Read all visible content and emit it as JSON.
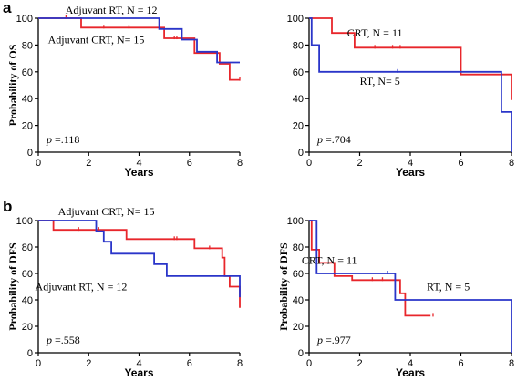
{
  "panel_labels": [
    "a",
    "b"
  ],
  "colors": {
    "red": "#e8262b",
    "blue": "#2a35c9",
    "axis": "#000000"
  },
  "chart_data": [
    {
      "type": "line",
      "panel": "a-left",
      "xlabel": "Years",
      "ylabel": "Probability of OS",
      "xlim": [
        0,
        8
      ],
      "ylim": [
        0,
        100
      ],
      "xticks": [
        0,
        2,
        4,
        6,
        8
      ],
      "yticks": [
        0,
        20,
        40,
        60,
        80,
        100
      ],
      "p_prefix": "p",
      "p_value": "=.118",
      "annotations": [
        {
          "text": "Adjuvant RT, N = 12",
          "x": 2.9,
          "y": 106
        },
        {
          "text": "Adjuvant CRT, N= 15",
          "x": 2.3,
          "y": 84
        }
      ],
      "series": [
        {
          "color": "red",
          "steps": [
            [
              0,
              100
            ],
            [
              1.7,
              100
            ],
            [
              1.7,
              93
            ],
            [
              5,
              93
            ],
            [
              5,
              85
            ],
            [
              6.2,
              85
            ],
            [
              6.2,
              74
            ],
            [
              7.2,
              74
            ],
            [
              7.2,
              66
            ],
            [
              7.6,
              66
            ],
            [
              7.6,
              54
            ],
            [
              8,
              54
            ]
          ],
          "censor": [
            [
              1.1,
              100
            ],
            [
              2.6,
              93
            ],
            [
              3.6,
              93
            ],
            [
              5.4,
              85
            ],
            [
              5.5,
              85
            ],
            [
              8,
              54
            ]
          ]
        },
        {
          "color": "blue",
          "steps": [
            [
              0,
              100
            ],
            [
              4.8,
              100
            ],
            [
              4.8,
              92
            ],
            [
              5.7,
              92
            ],
            [
              5.7,
              84
            ],
            [
              6.3,
              84
            ],
            [
              6.3,
              75
            ],
            [
              7.1,
              75
            ],
            [
              7.1,
              67
            ],
            [
              8,
              67
            ]
          ],
          "censor": []
        }
      ]
    },
    {
      "type": "line",
      "panel": "a-right",
      "xlabel": "Years",
      "ylabel": "",
      "xlim": [
        0,
        8
      ],
      "ylim": [
        0,
        100
      ],
      "xticks": [
        0,
        2,
        4,
        6,
        8
      ],
      "yticks": [
        0,
        20,
        40,
        60,
        80,
        100
      ],
      "p_prefix": "p",
      "p_value": "=.704",
      "annotations": [
        {
          "text": "CRT, N = 11",
          "x": 2.6,
          "y": 89
        },
        {
          "text": "RT, N= 5",
          "x": 2.8,
          "y": 53
        }
      ],
      "series": [
        {
          "color": "red",
          "steps": [
            [
              0,
              100
            ],
            [
              0.9,
              100
            ],
            [
              0.9,
              89
            ],
            [
              1.8,
              89
            ],
            [
              1.8,
              78
            ],
            [
              6,
              78
            ],
            [
              6,
              58
            ],
            [
              8,
              58
            ],
            [
              8,
              39
            ]
          ],
          "censor": [
            [
              2.6,
              78
            ],
            [
              3.3,
              78
            ],
            [
              3.6,
              78
            ]
          ]
        },
        {
          "color": "blue",
          "steps": [
            [
              0,
              100
            ],
            [
              0.1,
              100
            ],
            [
              0.1,
              80
            ],
            [
              0.4,
              80
            ],
            [
              0.4,
              60
            ],
            [
              7.6,
              60
            ],
            [
              7.6,
              30
            ],
            [
              8,
              30
            ],
            [
              8,
              0
            ]
          ],
          "censor": [
            [
              3.5,
              60
            ]
          ]
        }
      ]
    },
    {
      "type": "line",
      "panel": "b-left",
      "xlabel": "Years",
      "ylabel": "Probability of DFS",
      "xlim": [
        0,
        8
      ],
      "ylim": [
        0,
        100
      ],
      "xticks": [
        0,
        2,
        4,
        6,
        8
      ],
      "yticks": [
        0,
        20,
        40,
        60,
        80,
        100
      ],
      "p_prefix": "p",
      "p_value": "=.558",
      "annotations": [
        {
          "text": "Adjuvant CRT, N= 15",
          "x": 2.7,
          "y": 107
        },
        {
          "text": "Adjuvant RT, N = 12",
          "x": 1.7,
          "y": 50
        }
      ],
      "series": [
        {
          "color": "red",
          "steps": [
            [
              0,
              100
            ],
            [
              0.6,
              100
            ],
            [
              0.6,
              93
            ],
            [
              3.5,
              93
            ],
            [
              3.5,
              86
            ],
            [
              6.2,
              86
            ],
            [
              6.2,
              79
            ],
            [
              7.3,
              79
            ],
            [
              7.3,
              72
            ],
            [
              7.4,
              72
            ],
            [
              7.4,
              58
            ],
            [
              7.6,
              58
            ],
            [
              7.6,
              50
            ],
            [
              8,
              50
            ],
            [
              8,
              34
            ]
          ],
          "censor": [
            [
              1.6,
              93
            ],
            [
              2.4,
              93
            ],
            [
              5.4,
              86
            ],
            [
              5.5,
              86
            ],
            [
              6.8,
              79
            ]
          ]
        },
        {
          "color": "blue",
          "steps": [
            [
              0,
              100
            ],
            [
              2.3,
              100
            ],
            [
              2.3,
              92
            ],
            [
              2.6,
              92
            ],
            [
              2.6,
              84
            ],
            [
              2.9,
              84
            ],
            [
              2.9,
              75
            ],
            [
              4.6,
              75
            ],
            [
              4.6,
              67
            ],
            [
              5.1,
              67
            ],
            [
              5.1,
              58
            ],
            [
              8,
              58
            ],
            [
              8,
              42
            ]
          ],
          "censor": []
        }
      ]
    },
    {
      "type": "line",
      "panel": "b-right",
      "xlabel": "Years",
      "ylabel": "Probability of DFS",
      "xlim": [
        0,
        8
      ],
      "ylim": [
        0,
        100
      ],
      "xticks": [
        0,
        2,
        4,
        6,
        8
      ],
      "yticks": [
        0,
        20,
        40,
        60,
        80,
        100
      ],
      "p_prefix": "p",
      "p_value": "=.977",
      "annotations": [
        {
          "text": "CRT, N = 11",
          "x": 0.8,
          "y": 70
        },
        {
          "text": "RT, N = 5",
          "x": 5.5,
          "y": 50
        }
      ],
      "series": [
        {
          "color": "red",
          "steps": [
            [
              0,
              100
            ],
            [
              0.1,
              100
            ],
            [
              0.1,
              78
            ],
            [
              0.4,
              78
            ],
            [
              0.4,
              68
            ],
            [
              1,
              68
            ],
            [
              1,
              58
            ],
            [
              1.7,
              58
            ],
            [
              1.7,
              55
            ],
            [
              3.6,
              55
            ],
            [
              3.6,
              45
            ],
            [
              3.8,
              45
            ],
            [
              3.8,
              28
            ],
            [
              4.8,
              28
            ]
          ],
          "censor": [
            [
              2.5,
              55
            ],
            [
              2.9,
              55
            ],
            [
              4.9,
              28
            ]
          ]
        },
        {
          "color": "blue",
          "steps": [
            [
              0,
              100
            ],
            [
              0.3,
              100
            ],
            [
              0.3,
              60
            ],
            [
              3.4,
              60
            ],
            [
              3.4,
              40
            ],
            [
              8,
              40
            ],
            [
              8,
              0
            ]
          ],
          "censor": [
            [
              3.1,
              60
            ]
          ]
        }
      ]
    }
  ]
}
